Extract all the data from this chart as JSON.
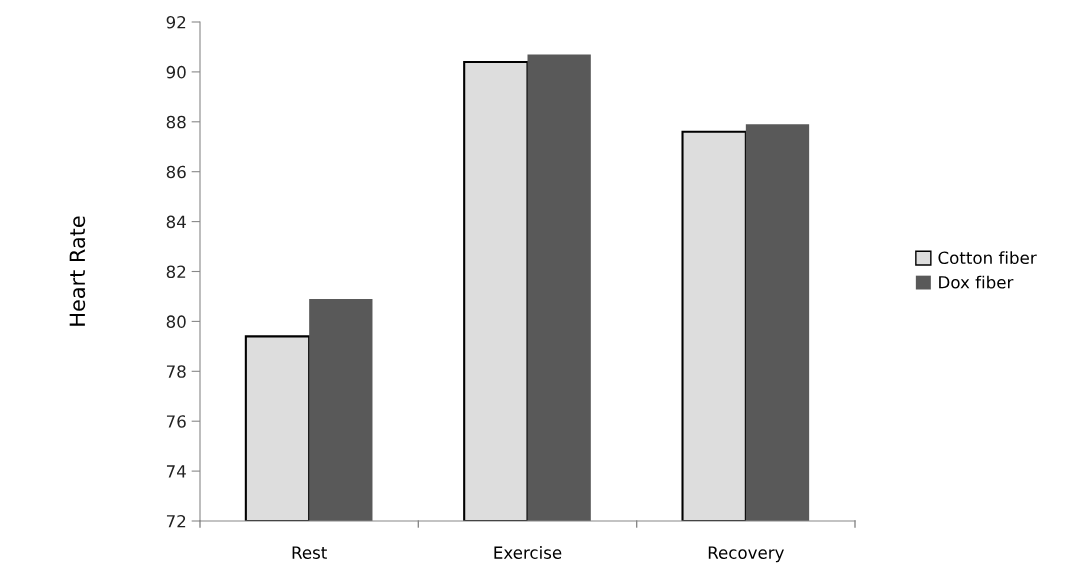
{
  "chart_data": {
    "type": "bar",
    "ylabel": "Heart Rate",
    "categories": [
      "Rest",
      "Exercise",
      "Recovery"
    ],
    "series": [
      {
        "name": "Cotton fiber",
        "color": "#dddddd",
        "values": [
          79.4,
          90.4,
          87.6
        ]
      },
      {
        "name": "Dox fiber",
        "color": "#595959",
        "values": [
          80.9,
          90.7,
          87.9
        ]
      }
    ],
    "ylim": [
      72,
      92
    ],
    "yticks": [
      72,
      74,
      76,
      78,
      80,
      82,
      84,
      86,
      88,
      90,
      92
    ],
    "grid": false,
    "legend": "right"
  }
}
